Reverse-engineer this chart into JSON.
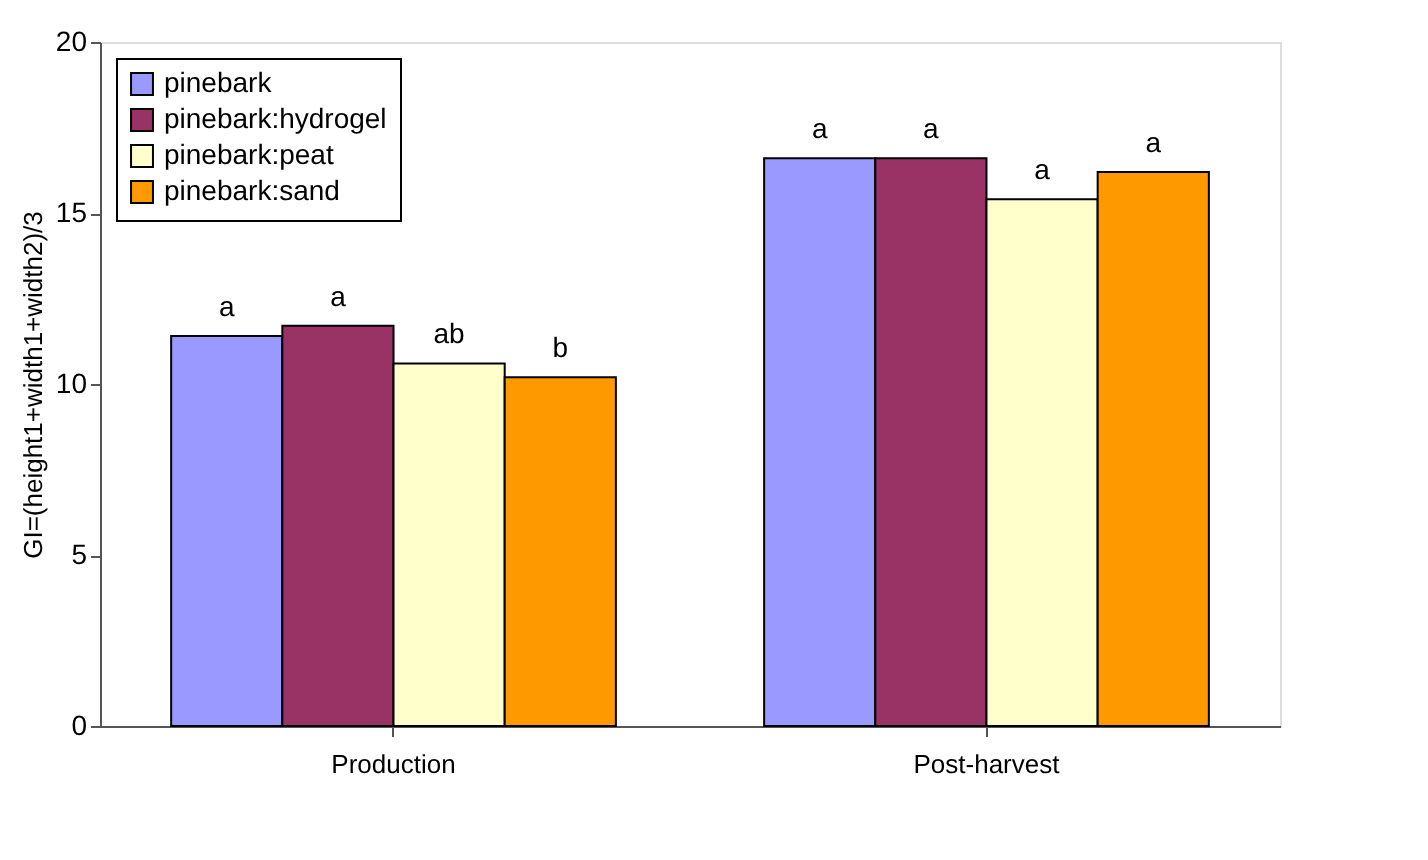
{
  "chart_data": {
    "type": "bar",
    "ylabel": "GI=(height1+width1+width2)/3",
    "categories": [
      "Production",
      "Post-harvest"
    ],
    "series": [
      {
        "name": "pinebark",
        "color": "#9999ff",
        "values": [
          11.4,
          16.6
        ],
        "value_labels": [
          "a",
          "a"
        ]
      },
      {
        "name": "pinebark:hydrogel",
        "color": "#993366",
        "values": [
          11.7,
          16.6
        ],
        "value_labels": [
          "a",
          "a"
        ]
      },
      {
        "name": "pinebark:peat",
        "color": "#ffffcc",
        "values": [
          10.6,
          15.4
        ],
        "value_labels": [
          "ab",
          "a"
        ]
      },
      {
        "name": "pinebark:sand",
        "color": "#ff9900",
        "values": [
          10.2,
          16.2
        ],
        "value_labels": [
          "b",
          "a"
        ]
      }
    ],
    "ylim": [
      0,
      20
    ],
    "yticks": [
      0,
      5,
      10,
      15,
      20
    ],
    "grid": false,
    "legend": "top left"
  }
}
